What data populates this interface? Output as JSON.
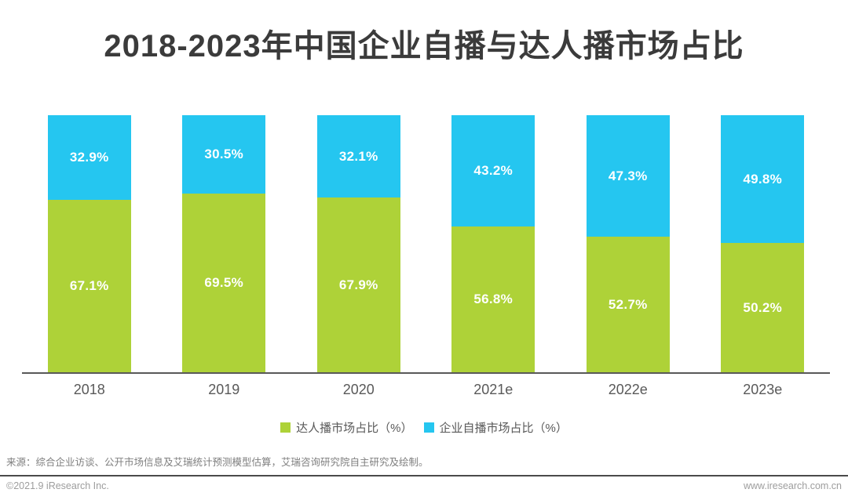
{
  "title": "2018-2023年中国企业自播与达人播市场占比",
  "chart_data": {
    "type": "bar",
    "stacked": true,
    "orientation": "vertical",
    "categories": [
      "2018",
      "2019",
      "2020",
      "2021e",
      "2022e",
      "2023e"
    ],
    "series": [
      {
        "name": "达人播市场占比（%）",
        "color": "#aed238",
        "position": "bottom",
        "values": [
          67.1,
          69.5,
          67.9,
          56.8,
          52.7,
          50.2
        ]
      },
      {
        "name": "企业自播市场占比（%）",
        "color": "#25c6f0",
        "position": "top",
        "values": [
          32.9,
          30.5,
          32.1,
          43.2,
          47.3,
          49.8
        ]
      }
    ],
    "value_suffix": "%",
    "ylim": [
      0,
      100
    ],
    "grid": false,
    "y_axis_visible": false,
    "legend_position": "bottom",
    "data_label_color": "#ffffff"
  },
  "source_note": "来源：综合企业访谈、公开市场信息及艾瑞统计预测模型估算，艾瑞咨询研究院自主研究及绘制。",
  "footer": {
    "copyright": "©2021.9 iResearch Inc.",
    "website": "www.iresearch.com.cn"
  },
  "colors": {
    "kol_green": "#aed238",
    "enterprise_blue": "#25c6f0",
    "title_text": "#3b3b3b",
    "axis_label": "#595959",
    "axis_line": "#595959",
    "source_text": "#7f7f7f",
    "footer_text": "#9d9d9d",
    "footer_divider": "#4a4a4a",
    "background": "#ffffff"
  }
}
